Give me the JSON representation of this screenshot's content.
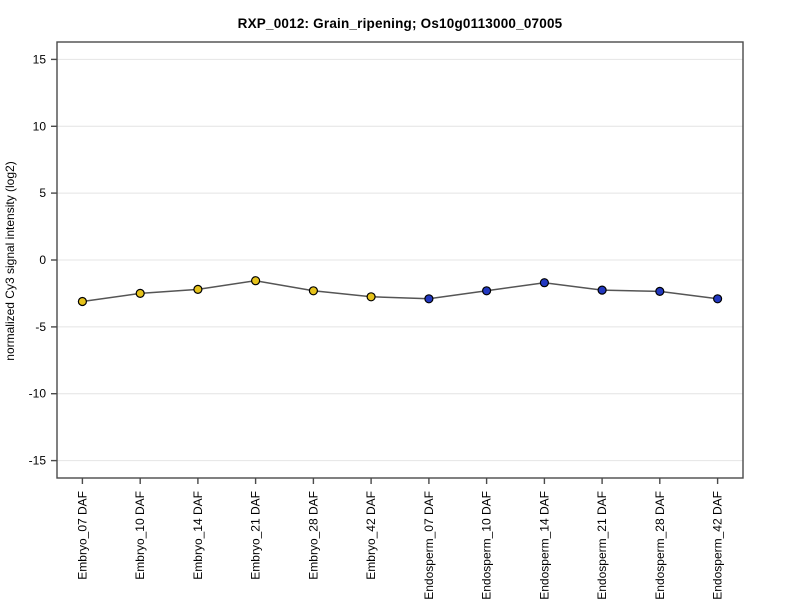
{
  "page": {
    "background": "#ffffff"
  },
  "chart_data": {
    "type": "line",
    "title": "RXP_0012: Grain_ripening; Os10g0113000_07005",
    "xlabel": "",
    "ylabel": "normalized Cy3 signal intensity (log2)",
    "categories": [
      "Embryo_07 DAF",
      "Embryo_10 DAF",
      "Embryo_14 DAF",
      "Embryo_21 DAF",
      "Embryo_28 DAF",
      "Embryo_42 DAF",
      "Endosperm_07 DAF",
      "Endosperm_10 DAF",
      "Endosperm_14 DAF",
      "Endosperm_21 DAF",
      "Endosperm_28 DAF",
      "Endosperm_42 DAF"
    ],
    "series": [
      {
        "name": "normalized Cy3 signal intensity (log2)",
        "values": [
          -3.1,
          -2.5,
          -2.2,
          -1.55,
          -2.3,
          -2.75,
          -2.9,
          -2.3,
          -1.7,
          -2.25,
          -2.35,
          -2.9
        ],
        "line_color": "#555555",
        "marker_colors": [
          "#E5C21B",
          "#E5C21B",
          "#E5C21B",
          "#E5C21B",
          "#E5C21B",
          "#E5C21B",
          "#2238C0",
          "#2238C0",
          "#2238C0",
          "#2238C0",
          "#2238C0",
          "#2238C0"
        ]
      }
    ],
    "sample_groups": [
      {
        "name": "Embryo",
        "color": "#E5C21B"
      },
      {
        "name": "Endosperm",
        "color": "#2238C0"
      }
    ],
    "yticks": [
      15,
      10,
      5,
      0,
      -5,
      -10,
      -15
    ],
    "ylim": [
      -16.3,
      16.3
    ],
    "grid": true,
    "legend": "none",
    "colors": {
      "gridline": "#E4E4E4",
      "axis_box": "#4A4A4A",
      "tick_label": "#000000",
      "marker_outline": "#000000"
    }
  }
}
